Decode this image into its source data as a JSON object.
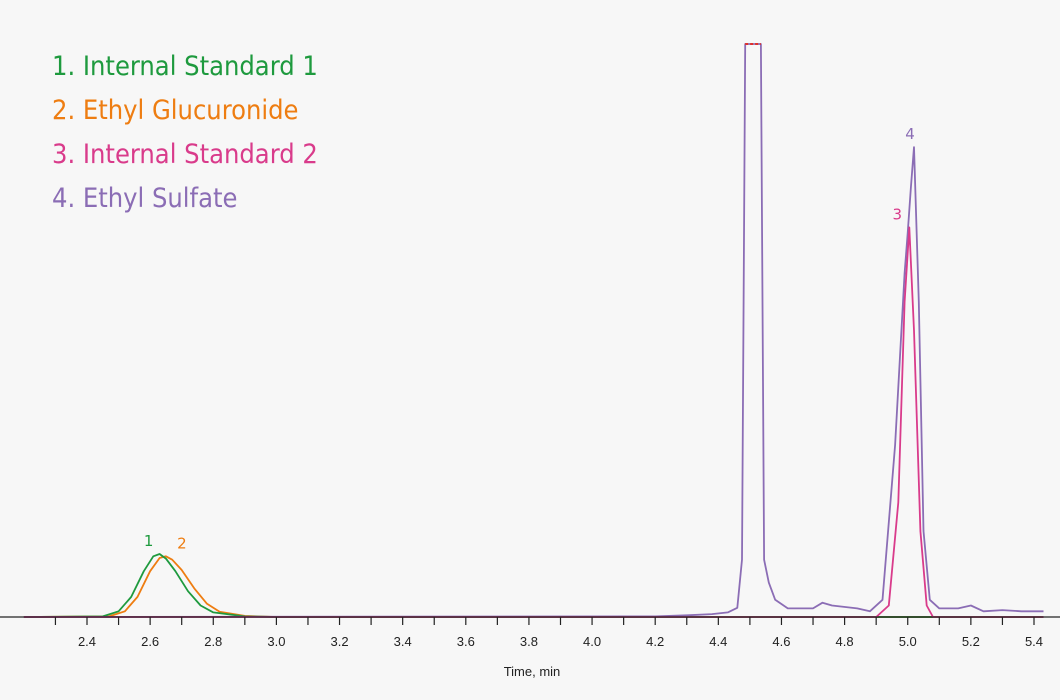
{
  "chart_data": {
    "type": "line",
    "xlabel": "Time, min",
    "ylabel": "",
    "xlim": [
      2.2,
      5.43
    ],
    "ylim": [
      0,
      100
    ],
    "x_ticks": [
      "2.4",
      "2.6",
      "2.8",
      "3.0",
      "3.2",
      "3.4",
      "3.6",
      "3.8",
      "4.0",
      "4.2",
      "4.4",
      "4.6",
      "4.8",
      "5.0",
      "5.2",
      "5.4"
    ],
    "grid": false,
    "legend_position": "top-left",
    "series": [
      {
        "name": "1. Internal Standard 1",
        "peak_label": "1",
        "color": "#1e9a3e",
        "x": [
          2.2,
          2.45,
          2.5,
          2.54,
          2.58,
          2.61,
          2.63,
          2.65,
          2.68,
          2.72,
          2.76,
          2.8,
          2.9,
          3.0,
          5.43
        ],
        "y": [
          0,
          0.1,
          1.0,
          3.5,
          8.0,
          10.6,
          11.0,
          10.2,
          8.0,
          4.5,
          2.0,
          0.8,
          0.1,
          0,
          0
        ]
      },
      {
        "name": "2. Ethyl Glucuronide",
        "peak_label": "2",
        "color": "#ee7d11",
        "x": [
          2.2,
          2.47,
          2.52,
          2.56,
          2.6,
          2.63,
          2.65,
          2.67,
          2.7,
          2.74,
          2.78,
          2.82,
          2.9,
          3.0,
          5.43
        ],
        "y": [
          0,
          0.1,
          1.0,
          3.5,
          8.0,
          10.3,
          10.6,
          10.0,
          8.2,
          5.0,
          2.3,
          0.9,
          0.2,
          0,
          0
        ]
      },
      {
        "name": "3. Internal Standard 2",
        "peak_label": "3",
        "color": "#d93b8b",
        "x": [
          2.2,
          4.9,
          4.94,
          4.97,
          4.99,
          5.005,
          5.02,
          5.04,
          5.06,
          5.08,
          5.43
        ],
        "y": [
          0,
          0,
          2.0,
          20.0,
          55.0,
          68.0,
          50.0,
          15.0,
          2.0,
          0,
          0
        ]
      },
      {
        "name": "4. Ethyl Sulfate",
        "peak_label": "4",
        "color": "#8b6db5",
        "x": [
          2.2,
          4.2,
          4.3,
          4.38,
          4.43,
          4.46,
          4.475,
          4.485,
          4.535,
          4.545,
          4.56,
          4.58,
          4.62,
          4.7,
          4.73,
          4.76,
          4.84,
          4.88,
          4.92,
          4.96,
          4.99,
          5.0,
          5.01,
          5.02,
          5.035,
          5.05,
          5.07,
          5.1,
          5.16,
          5.2,
          5.24,
          5.3,
          5.36,
          5.43
        ],
        "y": [
          0,
          0.1,
          0.3,
          0.5,
          0.8,
          1.6,
          10.0,
          100,
          100,
          10.0,
          6.0,
          3.0,
          1.5,
          1.5,
          2.5,
          2.0,
          1.5,
          1.0,
          3.0,
          30.0,
          60.0,
          67.0,
          75.0,
          82.0,
          55.0,
          15.0,
          3.0,
          1.5,
          1.5,
          2.0,
          1.0,
          1.2,
          1.0,
          1.0
        ]
      }
    ]
  },
  "colors": {
    "axis": "#222222",
    "clip_marker": "#e0302b",
    "background": "#f7f7f7"
  }
}
